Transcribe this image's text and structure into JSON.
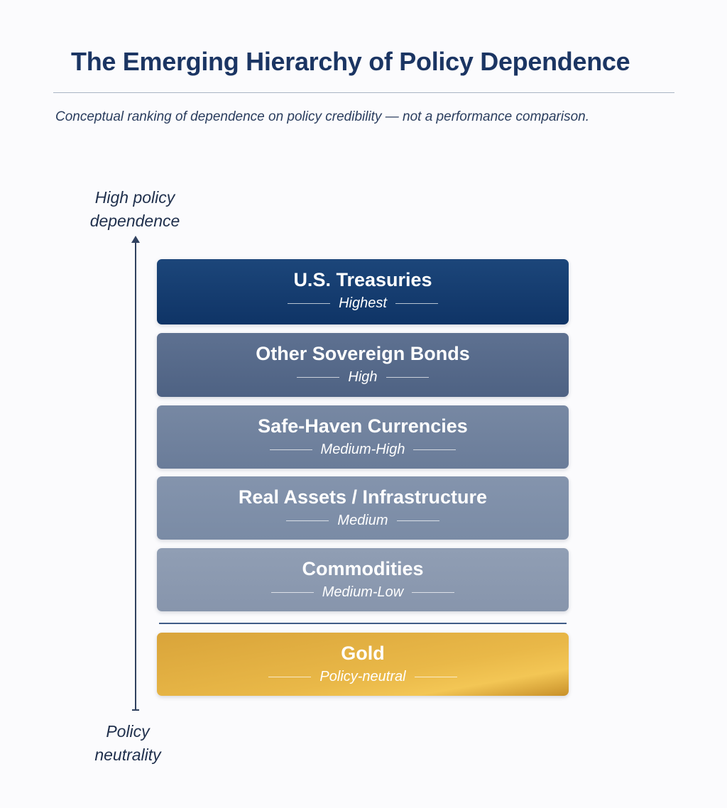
{
  "title": "The Emerging Hierarchy of Policy Dependence",
  "subtitle": "Conceptual ranking of dependence on policy credibility — not a performance comparison.",
  "axis": {
    "top_label": "High policy dependence",
    "bottom_label": "Policy neutrality"
  },
  "tiers": [
    {
      "name": "U.S. Treasuries",
      "level": "Highest",
      "color": "#163d6e"
    },
    {
      "name": "Other Sovereign Bonds",
      "level": "High",
      "color": "#566a8a"
    },
    {
      "name": "Safe-Haven Currencies",
      "level": "Medium-High",
      "color": "#72839f"
    },
    {
      "name": "Real Assets / Infrastructure",
      "level": "Medium",
      "color": "#8090aa"
    },
    {
      "name": "Commodities",
      "level": "Medium-Low",
      "color": "#8c9ab1"
    },
    {
      "name": "Gold",
      "level": "Policy-neutral",
      "color": "#d9a63a"
    }
  ]
}
